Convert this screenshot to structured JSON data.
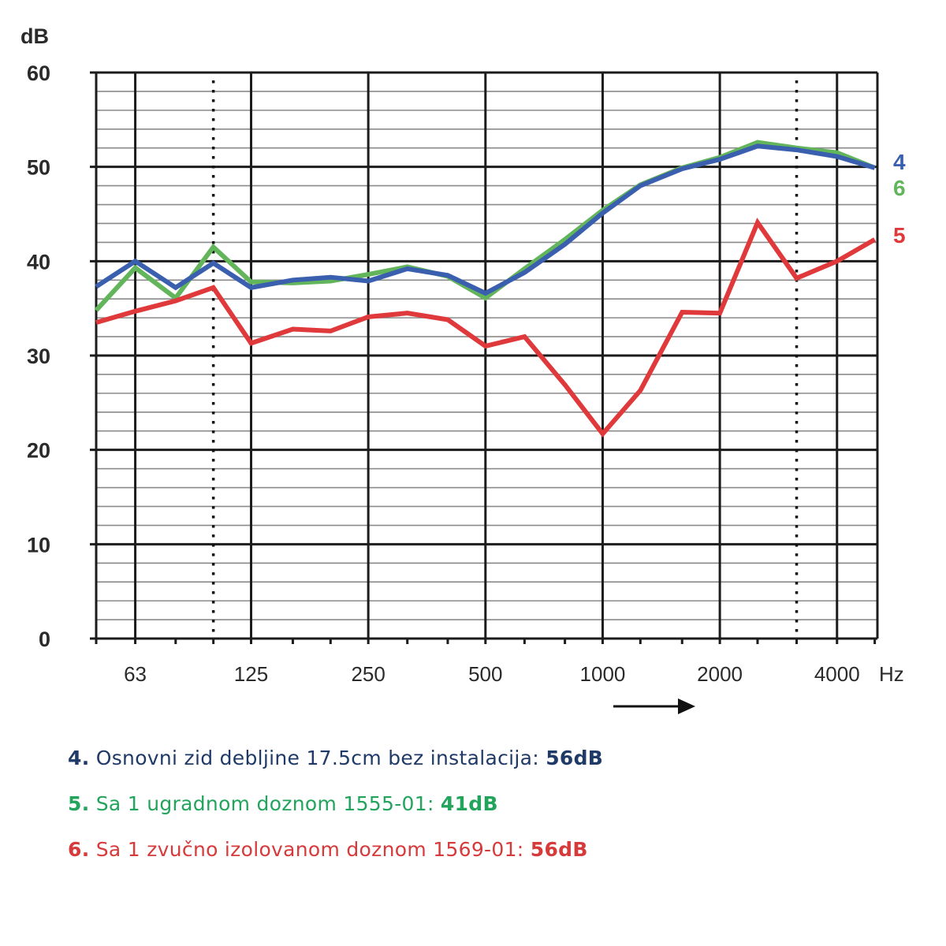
{
  "chart_data": {
    "type": "line",
    "title": "",
    "ylabel": "dB",
    "xlabel": "Hz",
    "ylim": [
      0,
      60
    ],
    "y_ticks": [
      0,
      10,
      20,
      30,
      40,
      50,
      60
    ],
    "y_tick_labels": [
      "0",
      "10",
      "20",
      "30",
      "40",
      "50",
      "60"
    ],
    "x_scale": "log (third-octave bands)",
    "x": [
      50,
      63,
      80,
      100,
      125,
      160,
      200,
      250,
      315,
      400,
      500,
      630,
      800,
      1000,
      1250,
      1600,
      2000,
      2500,
      3150,
      4000,
      5000
    ],
    "x_tick_values": [
      63,
      125,
      250,
      500,
      1000,
      2000,
      4000
    ],
    "x_tick_labels": [
      "63",
      "125",
      "250",
      "500",
      "1000",
      "2000",
      "4000"
    ],
    "dotted_reference_lines_hz": [
      100,
      3150
    ],
    "grid": true,
    "arrow_annotation": "increasing frequency arrow below 1000-2000 Hz",
    "series": [
      {
        "name": "4",
        "color": "#3a5fae",
        "values": [
          37.3,
          40.0,
          37.2,
          39.8,
          37.2,
          38.0,
          38.3,
          37.9,
          39.2,
          38.5,
          36.6,
          38.8,
          41.8,
          45.1,
          48.0,
          49.8,
          50.8,
          52.2,
          51.8,
          51.1,
          49.9
        ]
      },
      {
        "name": "6",
        "color": "#62b55a",
        "values": [
          34.8,
          39.3,
          36.1,
          41.5,
          37.8,
          37.7,
          37.9,
          38.6,
          39.4,
          38.4,
          36.1,
          39.2,
          42.3,
          45.4,
          48.1,
          49.9,
          51.0,
          52.6,
          52.0,
          51.5,
          49.9
        ]
      },
      {
        "name": "5",
        "color": "#e0393b",
        "values": [
          33.5,
          34.7,
          35.8,
          37.2,
          31.3,
          32.8,
          32.6,
          34.1,
          34.5,
          33.8,
          31.0,
          32.0,
          26.9,
          21.7,
          26.3,
          34.6,
          34.5,
          44.1,
          38.2,
          40.0,
          42.3
        ]
      }
    ],
    "series_tags": [
      "4",
      "6",
      "5"
    ]
  },
  "legend": [
    {
      "number": "4.",
      "text": "Osnovni zid debljine 17.5cm bez instalacija: ",
      "value": "56dB",
      "color": "#1f3a66"
    },
    {
      "number": "5.",
      "text": "Sa 1 ugradnom doznom 1555-01: ",
      "value": "41dB",
      "color": "#22a45c"
    },
    {
      "number": "6.",
      "text": "Sa 1 zvučno izolovanom doznom 1569-01: ",
      "value": "56dB",
      "color": "#d63a3a"
    }
  ]
}
